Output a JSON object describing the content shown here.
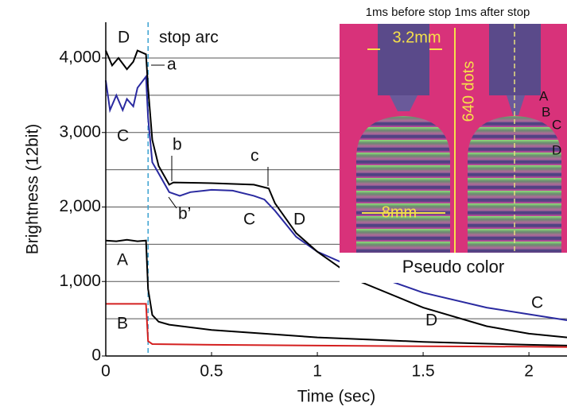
{
  "chart_data": {
    "type": "line",
    "x_label": "Time (sec)",
    "y_label": "Brightness  (12bit)",
    "xlim": [
      0,
      2.18
    ],
    "ylim": [
      0,
      4480
    ],
    "xticks": [
      0,
      0.5,
      1.0,
      1.5,
      2.0
    ],
    "yticks": [
      0,
      {
        "value": 1000,
        "label": "1,000"
      },
      {
        "value": 2000,
        "label": "2,000"
      },
      {
        "value": 3000,
        "label": "3,000"
      },
      {
        "value": 4000,
        "label": "4,000"
      }
    ],
    "minor_grid": [
      500,
      1500,
      2500,
      3500
    ],
    "grid": true,
    "stop_time": 0.2,
    "series": [
      {
        "name": "A",
        "color": "#000000",
        "x": [
          0,
          0.05,
          0.1,
          0.15,
          0.19,
          0.2,
          0.22,
          0.25,
          0.3,
          0.5,
          0.75,
          1.0,
          1.25,
          1.5,
          1.75,
          2.0,
          2.18
        ],
        "values": [
          1550,
          1540,
          1560,
          1540,
          1550,
          900,
          550,
          460,
          420,
          350,
          300,
          250,
          220,
          190,
          170,
          150,
          140
        ]
      },
      {
        "name": "B",
        "color": "#d42020",
        "x": [
          0,
          0.05,
          0.1,
          0.15,
          0.19,
          0.2,
          0.22,
          0.5,
          1.0,
          1.5,
          2.0,
          2.18
        ],
        "values": [
          700,
          700,
          700,
          700,
          700,
          200,
          160,
          150,
          140,
          130,
          125,
          120
        ]
      },
      {
        "name": "C",
        "color": "#2a2aa0",
        "x": [
          0,
          0.02,
          0.05,
          0.08,
          0.1,
          0.13,
          0.15,
          0.19,
          0.2,
          0.22,
          0.25,
          0.3,
          0.35,
          0.4,
          0.5,
          0.6,
          0.7,
          0.75,
          0.8,
          0.9,
          1.0,
          1.2,
          1.5,
          1.8,
          2.0,
          2.18
        ],
        "values": [
          3700,
          3300,
          3500,
          3300,
          3450,
          3350,
          3600,
          3750,
          3200,
          2600,
          2450,
          2200,
          2150,
          2200,
          2230,
          2220,
          2150,
          2100,
          1950,
          1600,
          1400,
          1150,
          850,
          650,
          560,
          480
        ]
      },
      {
        "name": "D",
        "color": "#000000",
        "x": [
          0,
          0.03,
          0.06,
          0.1,
          0.13,
          0.15,
          0.19,
          0.2,
          0.22,
          0.25,
          0.3,
          0.32,
          0.5,
          0.7,
          0.77,
          0.8,
          0.85,
          0.9,
          1.0,
          1.2,
          1.5,
          1.8,
          2.0,
          2.18
        ],
        "values": [
          4100,
          3900,
          4000,
          3850,
          3950,
          4100,
          4050,
          3600,
          2900,
          2550,
          2300,
          2330,
          2320,
          2300,
          2250,
          2050,
          1850,
          1650,
          1400,
          1000,
          650,
          400,
          300,
          250
        ]
      }
    ],
    "annotations": [
      "D",
      "C",
      "A",
      "B",
      "stop arc",
      "a",
      "b",
      "b’",
      "c",
      "C",
      "D",
      "C",
      "D"
    ],
    "inset": {
      "header": "1ms before stop 1ms after stop",
      "width": "3.2mm",
      "height": "640 dots",
      "gap": "8mm",
      "caption": "Pseudo color",
      "labels": [
        "A",
        "B",
        "C",
        "D"
      ]
    }
  }
}
